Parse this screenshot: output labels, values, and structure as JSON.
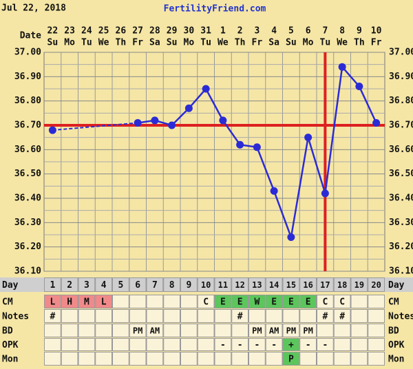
{
  "header": {
    "date": "Jul 22, 2018",
    "site": "FertilityFriend.com"
  },
  "chart_data": {
    "type": "line",
    "date_label": "Date",
    "categories": [
      "22",
      "23",
      "24",
      "25",
      "26",
      "27",
      "28",
      "29",
      "30",
      "31",
      "1",
      "2",
      "3",
      "4",
      "5",
      "6",
      "7",
      "8",
      "9",
      "10"
    ],
    "weekdays": [
      "Su",
      "Mo",
      "Tu",
      "We",
      "Th",
      "Fr",
      "Sa",
      "Su",
      "Mo",
      "Tu",
      "We",
      "Th",
      "Fr",
      "Sa",
      "Su",
      "Mo",
      "Tu",
      "We",
      "Th",
      "Fr"
    ],
    "values": [
      36.68,
      null,
      null,
      null,
      null,
      36.71,
      36.72,
      36.7,
      36.77,
      36.85,
      36.72,
      36.62,
      36.61,
      36.43,
      36.24,
      36.65,
      36.42,
      36.94,
      36.86,
      36.71
    ],
    "color": "#2b2bd6",
    "ylim": [
      36.1,
      37.0
    ],
    "yticks": [
      {
        "value": 37.0,
        "label": "37.00"
      },
      {
        "value": 36.9,
        "label": "36.90"
      },
      {
        "value": 36.8,
        "label": "36.80"
      },
      {
        "value": 36.7,
        "label": "36.70"
      },
      {
        "value": 36.6,
        "label": "36.60"
      },
      {
        "value": 36.5,
        "label": "36.50"
      },
      {
        "value": 36.4,
        "label": "36.40"
      },
      {
        "value": 36.3,
        "label": "36.30"
      },
      {
        "value": 36.2,
        "label": "36.20"
      },
      {
        "value": 36.1,
        "label": "36.10"
      }
    ],
    "minor_yticks": [
      36.95,
      36.85,
      36.75,
      36.65,
      36.55,
      36.45,
      36.35,
      36.25,
      36.15
    ],
    "grid": true,
    "coverline": {
      "value": 36.7,
      "color": "#dd2020"
    },
    "ovulation": {
      "cycle_day": 17,
      "color": "#dd2020"
    }
  },
  "table": {
    "rows": [
      {
        "label": "Day",
        "color": "#cfcfcf",
        "cells": [
          "1",
          "2",
          "3",
          "4",
          "5",
          "6",
          "7",
          "8",
          "9",
          "10",
          "11",
          "12",
          "13",
          "14",
          "15",
          "16",
          "17",
          "18",
          "19",
          "20"
        ]
      },
      {
        "label": "CM",
        "cells": [
          "L",
          "H",
          "M",
          "L",
          null,
          null,
          null,
          null,
          null,
          "C",
          "E",
          "E",
          "W",
          "E",
          "E",
          "E",
          "C",
          "C",
          null,
          null
        ],
        "colors": [
          "#f08a8a",
          "#f08a8a",
          "#f08a8a",
          "#f08a8a",
          null,
          null,
          null,
          null,
          null,
          null,
          "#5cc65c",
          "#5cc65c",
          "#5cc65c",
          "#5cc65c",
          "#5cc65c",
          "#5cc65c",
          null,
          null,
          null,
          null
        ]
      },
      {
        "label": "Notes",
        "cells": [
          "#",
          null,
          null,
          null,
          null,
          null,
          null,
          null,
          null,
          null,
          null,
          "#",
          null,
          null,
          null,
          null,
          "#",
          "#",
          null,
          null
        ]
      },
      {
        "label": "BD",
        "cells": [
          null,
          null,
          null,
          null,
          null,
          "PM",
          "AM",
          null,
          null,
          null,
          null,
          null,
          "PM",
          "AM",
          "PM",
          "PM",
          null,
          null,
          null,
          null
        ]
      },
      {
        "label": "OPK",
        "cells": [
          null,
          null,
          null,
          null,
          null,
          null,
          null,
          null,
          null,
          null,
          "-",
          "-",
          "-",
          "-",
          "+",
          "-",
          "-",
          null,
          null,
          null
        ],
        "colors": [
          null,
          null,
          null,
          null,
          null,
          null,
          null,
          null,
          null,
          null,
          null,
          null,
          null,
          null,
          "#5cc65c",
          null,
          null,
          null,
          null,
          null
        ]
      },
      {
        "label": "Mon",
        "cells": [
          null,
          null,
          null,
          null,
          null,
          null,
          null,
          null,
          null,
          null,
          null,
          null,
          null,
          null,
          "P",
          null,
          null,
          null,
          null,
          null
        ],
        "colors": [
          null,
          null,
          null,
          null,
          null,
          null,
          null,
          null,
          null,
          null,
          null,
          null,
          null,
          null,
          "#5cc65c",
          null,
          null,
          null,
          null,
          null
        ]
      }
    ]
  }
}
